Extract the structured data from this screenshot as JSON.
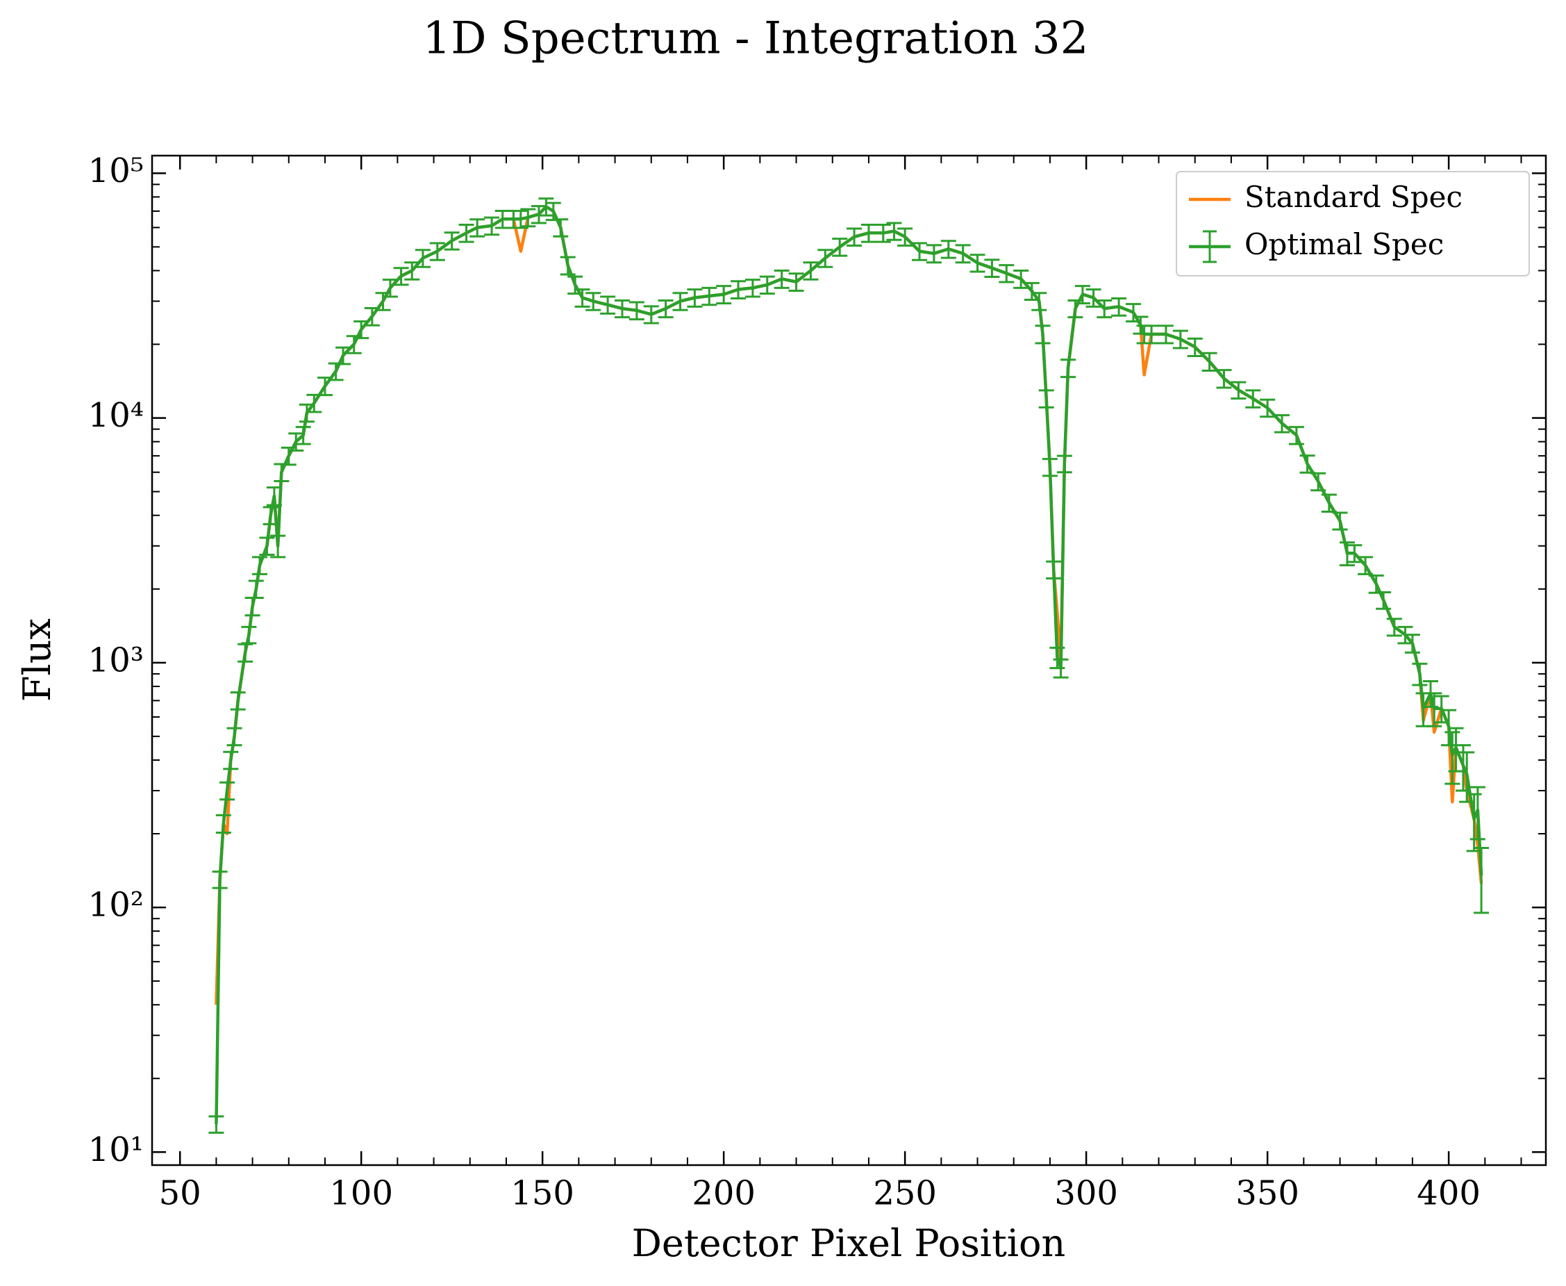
{
  "chart_data": {
    "type": "errorbar_line",
    "title": "1D Spectrum - Integration 32",
    "xlabel": "Detector Pixel Position",
    "ylabel": "Flux",
    "yscale": "log",
    "xlim": [
      42.3,
      426.8
    ],
    "ylim": [
      8.85,
      118000
    ],
    "xticks": [
      50,
      100,
      150,
      200,
      250,
      300,
      350,
      400
    ],
    "xminorticks": [
      60,
      70,
      80,
      90,
      110,
      120,
      130,
      140,
      160,
      170,
      180,
      190,
      210,
      220,
      230,
      240,
      260,
      270,
      280,
      290,
      310,
      320,
      330,
      340,
      360,
      370,
      380,
      390,
      410,
      420
    ],
    "yticks": [
      {
        "value": 10,
        "label": "10¹"
      },
      {
        "value": 100,
        "label": "10²"
      },
      {
        "value": 1000,
        "label": "10³"
      },
      {
        "value": 10000,
        "label": "10⁴"
      },
      {
        "value": 100000,
        "label": "10⁵"
      }
    ],
    "yminorticks": [
      20,
      30,
      40,
      50,
      60,
      70,
      80,
      90,
      200,
      300,
      400,
      500,
      600,
      700,
      800,
      900,
      2000,
      3000,
      4000,
      5000,
      6000,
      7000,
      8000,
      9000,
      20000,
      30000,
      40000,
      50000,
      60000,
      70000,
      80000,
      90000
    ],
    "legend": "upper right",
    "x": [
      60,
      61,
      62,
      63,
      64,
      65,
      66,
      68,
      69,
      70,
      71,
      72,
      74,
      75,
      76,
      77,
      78,
      80,
      82,
      84,
      85,
      87,
      90,
      93,
      95,
      98,
      100,
      103,
      106,
      108,
      111,
      114,
      117,
      121,
      125,
      129,
      132,
      136,
      139,
      142,
      144,
      146,
      149,
      151,
      153,
      155,
      157,
      159,
      161,
      164,
      168,
      172,
      176,
      180,
      184,
      188,
      192,
      196,
      200,
      204,
      208,
      212,
      216,
      220,
      224,
      228,
      232,
      236,
      240,
      244,
      247,
      250,
      254,
      258,
      262,
      266,
      270,
      274,
      278,
      282,
      285,
      287,
      288,
      289,
      290,
      291,
      292,
      293,
      294,
      295,
      297,
      299,
      302,
      305,
      309,
      313,
      315,
      316,
      318,
      322,
      326,
      330,
      334,
      338,
      342,
      346,
      350,
      354,
      358,
      361,
      364,
      367,
      370,
      372,
      374,
      377,
      380,
      382,
      385,
      388,
      390,
      392,
      393,
      395,
      396,
      398,
      400,
      401,
      402,
      404,
      405,
      407,
      408,
      409
    ],
    "series": [
      {
        "name": "Standard Spec",
        "color": "#ff7f0e",
        "values": [
          40,
          130,
          220,
          200,
          400,
          500,
          700,
          1100,
          1300,
          1700,
          2000,
          2500,
          3000,
          4000,
          4800,
          3000,
          6000,
          7000,
          8000,
          8500,
          10500,
          11500,
          13500,
          15500,
          18000,
          20000,
          23000,
          26000,
          30000,
          34000,
          38000,
          40000,
          45000,
          48000,
          53000,
          57000,
          60000,
          61000,
          65000,
          65000,
          48000,
          66000,
          68000,
          73000,
          70000,
          60000,
          42000,
          35000,
          31000,
          30000,
          29000,
          28000,
          27500,
          26500,
          28000,
          30000,
          31000,
          31500,
          32000,
          33500,
          34000,
          35000,
          37000,
          36000,
          40000,
          45000,
          50000,
          55000,
          57000,
          57000,
          58000,
          55000,
          48000,
          47000,
          49000,
          47000,
          43000,
          41000,
          39000,
          37000,
          33000,
          30000,
          22000,
          12000,
          6300,
          2400,
          1600,
          1000,
          6500,
          16000,
          28000,
          32000,
          31000,
          28000,
          28500,
          27000,
          24000,
          15000,
          22000,
          22000,
          21000,
          19500,
          17000,
          14500,
          13000,
          12000,
          11000,
          9500,
          8500,
          6500,
          5500,
          4500,
          3800,
          2800,
          2800,
          2500,
          2100,
          1800,
          1400,
          1300,
          1200,
          900,
          580,
          750,
          520,
          650,
          550,
          270,
          450,
          380,
          300,
          230,
          180,
          125
        ]
      },
      {
        "name": "Optimal Spec",
        "color": "#2ca02c",
        "values": [
          13,
          130,
          220,
          300,
          400,
          500,
          700,
          1100,
          1300,
          1700,
          2000,
          2500,
          3000,
          4000,
          4800,
          3000,
          6000,
          7000,
          8000,
          8500,
          10500,
          11500,
          13500,
          15500,
          18000,
          20000,
          23000,
          26000,
          30000,
          34000,
          38000,
          40000,
          45000,
          48000,
          53000,
          57000,
          60000,
          61000,
          65000,
          65000,
          65000,
          66000,
          68000,
          73000,
          70000,
          60000,
          42000,
          35000,
          31000,
          30000,
          29000,
          28000,
          27500,
          26500,
          28000,
          30000,
          31000,
          31500,
          32000,
          33500,
          34000,
          35000,
          37000,
          36000,
          40000,
          45000,
          50000,
          55000,
          57000,
          57000,
          58000,
          55000,
          48000,
          47000,
          49000,
          47000,
          43000,
          41000,
          39000,
          37000,
          33000,
          30000,
          22000,
          12000,
          6300,
          2400,
          1050,
          950,
          6500,
          16000,
          28000,
          32000,
          31000,
          28000,
          28500,
          27000,
          24000,
          22000,
          22000,
          22000,
          21000,
          19500,
          17000,
          14500,
          13000,
          12000,
          11000,
          9500,
          8500,
          6500,
          5500,
          4500,
          3800,
          2800,
          2800,
          2500,
          2100,
          1800,
          1400,
          1300,
          1200,
          900,
          650,
          750,
          650,
          650,
          550,
          420,
          450,
          380,
          350,
          230,
          250,
          135
        ],
        "errors": [
          1,
          10,
          18,
          24,
          32,
          40,
          56,
          90,
          100,
          140,
          160,
          200,
          240,
          320,
          400,
          300,
          480,
          560,
          640,
          680,
          840,
          920,
          1100,
          1200,
          1400,
          1600,
          1800,
          2100,
          2400,
          2700,
          3000,
          3200,
          3600,
          3800,
          4200,
          4600,
          4800,
          4900,
          5200,
          5200,
          5200,
          5300,
          5400,
          5800,
          5600,
          4800,
          3400,
          2800,
          2500,
          2400,
          2300,
          2200,
          2200,
          2100,
          2200,
          2400,
          2500,
          2500,
          2600,
          2700,
          2700,
          2800,
          3000,
          2900,
          3200,
          3600,
          4000,
          4400,
          4600,
          4600,
          4600,
          4400,
          3800,
          3800,
          3900,
          3800,
          3400,
          3300,
          3100,
          3000,
          2600,
          2400,
          1800,
          960,
          500,
          190,
          100,
          80,
          500,
          1300,
          2200,
          2600,
          2500,
          2200,
          2300,
          2200,
          1900,
          1800,
          1800,
          1800,
          1700,
          1600,
          1400,
          1200,
          1000,
          960,
          880,
          760,
          680,
          520,
          440,
          360,
          300,
          300,
          220,
          200,
          170,
          140,
          110,
          100,
          100,
          90,
          100,
          90,
          100,
          80,
          90,
          100,
          90,
          80,
          80,
          60,
          60,
          40
        ]
      }
    ]
  }
}
